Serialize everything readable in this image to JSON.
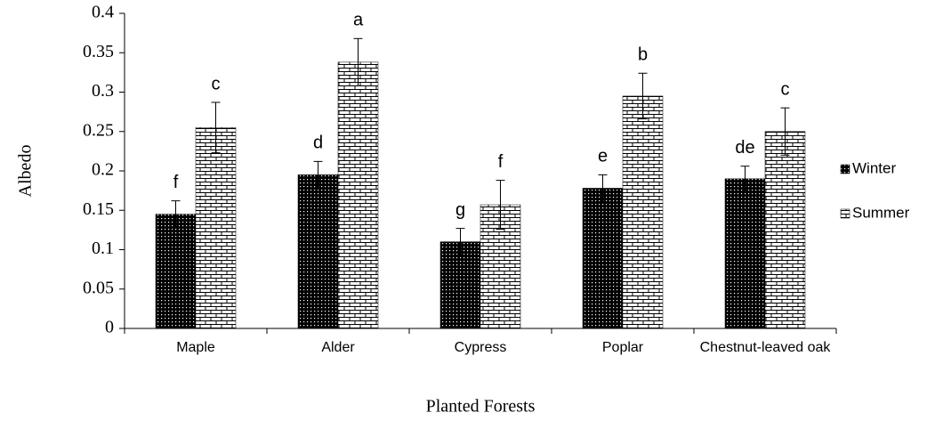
{
  "chart_data": {
    "type": "bar",
    "x_label": "Planted Forests",
    "y_label": "Albedo",
    "categories": [
      "Maple",
      "Alder",
      "Cypress",
      "Poplar",
      "Chestnut-leaved oak"
    ],
    "series": [
      {
        "name": "Winter",
        "color": "#000000",
        "values": [
          0.145,
          0.195,
          0.11,
          0.178,
          0.19
        ],
        "errors": [
          0.017,
          0.017,
          0.017,
          0.017,
          0.016
        ],
        "annotations": [
          "f",
          "d",
          "g",
          "e",
          "de"
        ]
      },
      {
        "name": "Summer",
        "color": "#ffffff",
        "values": [
          0.255,
          0.338,
          0.157,
          0.295,
          0.25
        ],
        "errors": [
          0.032,
          0.03,
          0.031,
          0.029,
          0.03
        ],
        "annotations": [
          "c",
          "a",
          "f",
          "b",
          "c"
        ]
      }
    ],
    "ylim": [
      0,
      0.4
    ],
    "yticks": [
      0,
      0.05,
      0.1,
      0.15,
      0.2,
      0.25,
      0.3,
      0.35,
      0.4
    ],
    "legend": "right"
  }
}
